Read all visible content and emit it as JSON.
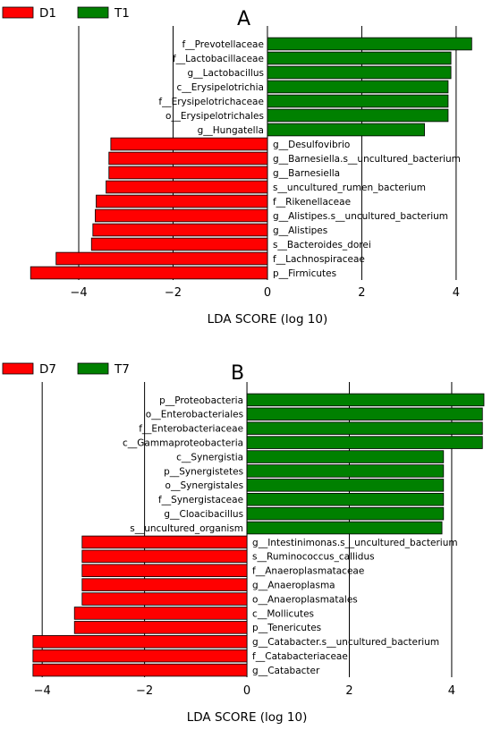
{
  "colors": {
    "neg": "#ff0000",
    "pos": "#008000"
  },
  "chart_data": [
    {
      "type": "bar",
      "orientation": "horizontal",
      "panel_label": "A",
      "xlabel": "LDA SCORE (log 10)",
      "xlim": [
        -5.1,
        4.4
      ],
      "xticks": [
        -4,
        -2,
        0,
        2,
        4
      ],
      "tick_labels": [
        "−4",
        "−2",
        "0",
        "2",
        "4"
      ],
      "grid": "vertical",
      "legend": [
        {
          "name": "D1",
          "color": "#ff0000"
        },
        {
          "name": "T1",
          "color": "#008000"
        }
      ],
      "categories": [
        "f__Prevotellaceae",
        "f__Lactobacillaceae",
        "g__Lactobacillus",
        "c__Erysipelotrichia",
        "f__Erysipelotrichaceae",
        "o__Erysipelotrichales",
        "g__Hungatella",
        "g__Desulfovibrio",
        "g__Barnesiella.s__uncultured_bacterium",
        "g__Barnesiella",
        "s__uncultured_rumen_bacterium",
        "f__Rikenellaceae",
        "g__Alistipes.s__uncultured_bacterium",
        "g__Alistipes",
        "s__Bacteroides_dorei",
        "f__Lachnospiraceae",
        "p__Firmicutes"
      ],
      "values": [
        4.33,
        3.89,
        3.89,
        3.83,
        3.83,
        3.83,
        3.33,
        -3.32,
        -3.36,
        -3.36,
        -3.42,
        -3.63,
        -3.65,
        -3.7,
        -3.73,
        -4.48,
        -5.02
      ],
      "groups": [
        "T1",
        "T1",
        "T1",
        "T1",
        "T1",
        "T1",
        "T1",
        "D1",
        "D1",
        "D1",
        "D1",
        "D1",
        "D1",
        "D1",
        "D1",
        "D1",
        "D1"
      ]
    },
    {
      "type": "bar",
      "orientation": "horizontal",
      "panel_label": "B",
      "xlabel": "LDA SCORE (log 10)",
      "xlim": [
        -4.3,
        4.7
      ],
      "xticks": [
        -4,
        -2,
        0,
        2,
        4
      ],
      "tick_labels": [
        "−4",
        "−2",
        "0",
        "2",
        "4"
      ],
      "grid": "vertical",
      "legend": [
        {
          "name": "D7",
          "color": "#ff0000"
        },
        {
          "name": "T7",
          "color": "#008000"
        }
      ],
      "categories": [
        "p__Proteobacteria",
        "o__Enterobacteriales",
        "f__Enterobacteriaceae",
        "c__Gammaproteobacteria",
        "c__Synergistia",
        "p__Synergistetes",
        "o__Synergistales",
        "f__Synergistaceae",
        "g__Cloacibacillus",
        "s__uncultured_organism",
        "g__Intestinimonas.s__uncultured_bacterium",
        "s__Ruminococcus_callidus",
        "f__Anaeroplasmataceae",
        "g__Anaeroplasma",
        "o__Anaeroplasmatales",
        "c__Mollicutes",
        "p__Tenericutes",
        "g__Catabacter.s__uncultured_bacterium",
        "f__Catabacteriaceae",
        "g__Catabacter"
      ],
      "values": [
        4.63,
        4.6,
        4.6,
        4.6,
        3.84,
        3.84,
        3.84,
        3.84,
        3.84,
        3.81,
        -3.22,
        -3.22,
        -3.22,
        -3.22,
        -3.22,
        -3.37,
        -3.37,
        -4.18,
        -4.18,
        -4.18
      ],
      "groups": [
        "T7",
        "T7",
        "T7",
        "T7",
        "T7",
        "T7",
        "T7",
        "T7",
        "T7",
        "T7",
        "D7",
        "D7",
        "D7",
        "D7",
        "D7",
        "D7",
        "D7",
        "D7",
        "D7",
        "D7"
      ]
    }
  ]
}
